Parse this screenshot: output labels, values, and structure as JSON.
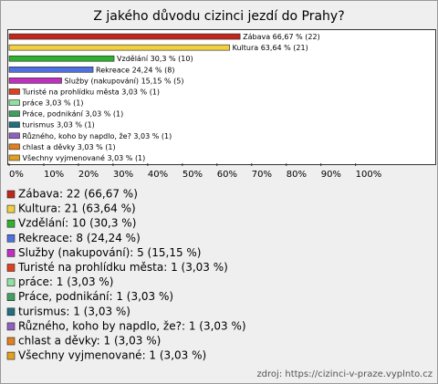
{
  "chart_data": {
    "type": "bar",
    "orientation": "horizontal",
    "title": "Z jakého důvodu cizinci jezdí do Prahy?",
    "categories": [
      "Zábava",
      "Kultura",
      "Vzdělání",
      "Rekreace",
      "Služby (nakupování)",
      "Turisté na prohlídku města",
      "práce",
      "Práce, podnikání",
      "turismus",
      "Různého,    koho by napdlo, že?",
      "chlast a děvky",
      "Všechny vyjmenované"
    ],
    "values": [
      66.67,
      63.64,
      30.3,
      24.24,
      15.15,
      3.03,
      3.03,
      3.03,
      3.03,
      3.03,
      3.03,
      3.03
    ],
    "value_labels": [
      "66,67 % (22)",
      "63,64 % (21)",
      "30,3 % (10)",
      "24,24 % (8)",
      "15,15 % (5)",
      "3,03 % (1)",
      "3,03 % (1)",
      "3,03 % (1)",
      "3,03 % (1)",
      "3,03 % (1)",
      "3,03 % (1)",
      "3,03 % (1)"
    ],
    "colors": [
      "#c0281c",
      "#f0d040",
      "#30b030",
      "#5070e0",
      "#c030c0",
      "#e04020",
      "#90e0a0",
      "#40a060",
      "#207080",
      "#9060c0",
      "#e08020",
      "#e0a020"
    ],
    "legend_labels": [
      "Zábava: 22 (66,67 %)",
      "Kultura: 21 (63,64 %)",
      "Vzdělání: 10 (30,3 %)",
      "Rekreace: 8 (24,24 %)",
      "Služby (nakupování): 5 (15,15 %)",
      "Turisté na prohlídku města: 1 (3,03 %)",
      "práce: 1 (3,03 %)",
      "Práce, podnikání: 1 (3,03 %)",
      "turismus: 1 (3,03 %)",
      "Různého,    koho by napdlo, že?: 1 (3,03 %)",
      "chlast a děvky: 1 (3,03 %)",
      "Všechny vyjmenované: 1 (3,03 %)"
    ],
    "xlim": [
      0,
      123
    ],
    "xticks": [
      {
        "value": 0,
        "label": "0%"
      },
      {
        "value": 10,
        "label": "10%"
      },
      {
        "value": 20,
        "label": "20%"
      },
      {
        "value": 30,
        "label": "30%"
      },
      {
        "value": 40,
        "label": "40%"
      },
      {
        "value": 50,
        "label": "50%"
      },
      {
        "value": 60,
        "label": "60%"
      },
      {
        "value": 70,
        "label": "70%"
      },
      {
        "value": 80,
        "label": "80%"
      },
      {
        "value": 90,
        "label": "90%"
      },
      {
        "value": 100,
        "label": "100%"
      }
    ],
    "source": "zdroj: https://cizinci-v-praze.vyplnto.cz"
  }
}
